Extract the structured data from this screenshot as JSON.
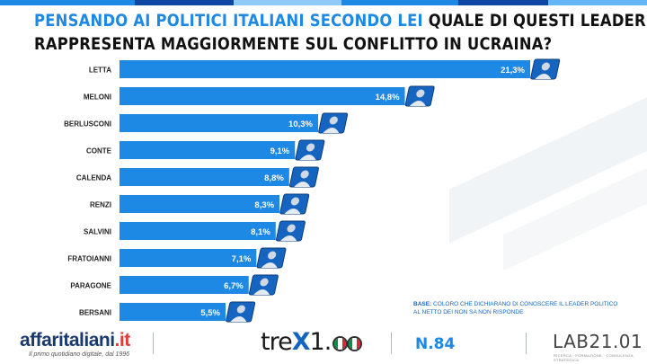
{
  "colors": {
    "accent": "#1e88e5",
    "bar": "#1e88e5",
    "dark": "#111111",
    "topbar": [
      "#1e88e5",
      "#0d47a1",
      "#90caf9",
      "#1e88e5",
      "#0d47a1",
      "#64b5f6"
    ]
  },
  "title": {
    "highlight": "PENSANDO AI POLITICI ITALIANI SECONDO LEI",
    "line1_rest": " QUALE DI QUESTI LEADER LA",
    "line2": "RAPPRESENTA MAGGIORMENTE SUL CONFLITTO IN UCRAINA?"
  },
  "chart_data": {
    "type": "bar",
    "orientation": "horizontal",
    "categories": [
      "LETTA",
      "MELONI",
      "BERLUSCONI",
      "CONTE",
      "CALENDA",
      "RENZI",
      "SALVINI",
      "FRATOIANNI",
      "PARAGONE",
      "BERSANI"
    ],
    "values": [
      21.3,
      14.8,
      10.3,
      9.1,
      8.8,
      8.3,
      8.1,
      7.1,
      6.7,
      5.5
    ],
    "value_labels": [
      "21,3%",
      "14,8%",
      "10,3%",
      "9,1%",
      "8,8%",
      "8,3%",
      "8,1%",
      "7,1%",
      "6,7%",
      "5,5%"
    ],
    "xlim": [
      0,
      21.3
    ],
    "grid": false,
    "legend": "none",
    "marker": "portrait-icon"
  },
  "note": {
    "label": "BASE:",
    "text": "COLORO CHE DICHIARANO DI CONOSCERE IL LEADER POLITICO",
    "text2": "AL NETTO DEI NON SA NON RISPONDE"
  },
  "footer": {
    "brand_main": "affaritaliani",
    "brand_dot": ".",
    "brand_tld": "it",
    "tagline": "Il primo quotidiano digitale, dal 1996",
    "trex_prefix": "tre",
    "trex_x": "X",
    "trex_suffix": "1.",
    "issue": "N.84",
    "lab_name": "LAB21.01",
    "lab_sub": "RICERCA · FORMAZIONE · CONSULENZA STRATEGICA",
    "flag_colors": [
      "#009246",
      "#ffffff",
      "#ce2b37"
    ]
  }
}
